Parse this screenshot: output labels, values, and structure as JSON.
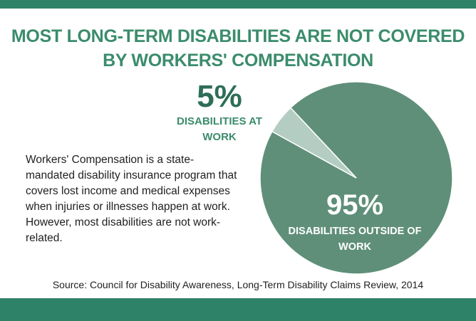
{
  "title": "MOST LONG-TERM DISABILITIES ARE NOT COVERED BY WORKERS' COMPENSATION",
  "description": "Workers' Compensation is a state-mandated disability insurance program that covers lost income and medical expenses when injuries or illnesses happen at work. However, most disabilities are not work-related.",
  "source": "Source: Council for Disability Awareness, Long-Term Disability Claims Review, 2014",
  "colors": {
    "brand": "#2d8268",
    "title": "#3b8c6c",
    "pie_major": "#5f8f79",
    "pie_minor": "#b4cdc2"
  },
  "chart_data": {
    "type": "pie",
    "slices": [
      {
        "label": "DISABILITIES AT WORK",
        "value": 5,
        "value_label": "5%"
      },
      {
        "label": "DISABILITIES OUTSIDE OF WORK",
        "value": 95,
        "value_label": "95%"
      }
    ],
    "legend": "none"
  }
}
